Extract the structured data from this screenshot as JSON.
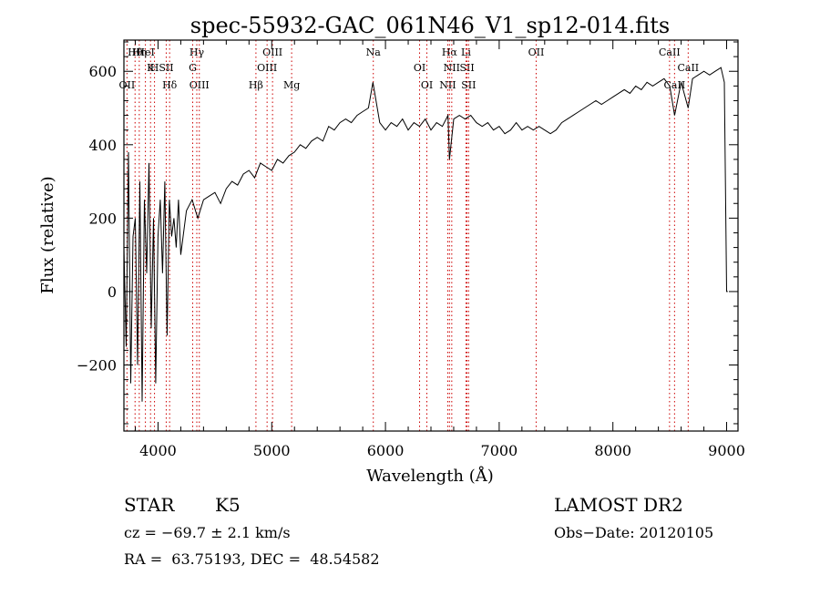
{
  "chart_data": {
    "type": "line",
    "title": "spec-55932-GAC_061N46_V1_sp12-014.fits",
    "xlabel": "Wavelength (Å)",
    "ylabel": "Flux (relative)",
    "xlim": [
      3700,
      9100
    ],
    "ylim": [
      -380,
      685
    ],
    "xticks": [
      4000,
      5000,
      6000,
      7000,
      8000,
      9000
    ],
    "yticks": [
      -200,
      0,
      200,
      400,
      600
    ],
    "grid": false,
    "line_color": "#000000",
    "marker_color": "#cc0000",
    "series": [
      {
        "x": [
          3700,
          3720,
          3740,
          3760,
          3780,
          3800,
          3820,
          3840,
          3860,
          3880,
          3900,
          3920,
          3940,
          3960,
          3980,
          4000,
          4020,
          4040,
          4060,
          4080,
          4100,
          4120,
          4140,
          4160,
          4180,
          4200,
          4250,
          4300,
          4350,
          4400,
          4450,
          4500,
          4550,
          4600,
          4650,
          4700,
          4750,
          4800,
          4850,
          4900,
          4950,
          5000,
          5050,
          5100,
          5150,
          5200,
          5250,
          5300,
          5350,
          5400,
          5450,
          5500,
          5550,
          5600,
          5650,
          5700,
          5750,
          5800,
          5850,
          5890,
          5950,
          6000,
          6050,
          6100,
          6150,
          6200,
          6250,
          6300,
          6350,
          6400,
          6450,
          6500,
          6550,
          6563,
          6600,
          6650,
          6700,
          6750,
          6800,
          6850,
          6900,
          6950,
          7000,
          7050,
          7100,
          7150,
          7200,
          7250,
          7300,
          7350,
          7400,
          7450,
          7500,
          7550,
          7600,
          7650,
          7700,
          7750,
          7800,
          7850,
          7900,
          7950,
          8000,
          8050,
          8100,
          8150,
          8200,
          8250,
          8300,
          8350,
          8400,
          8450,
          8500,
          8542,
          8600,
          8662,
          8700,
          8750,
          8800,
          8850,
          8900,
          8950,
          8980,
          9000,
          9010
        ],
        "values": [
          120,
          -150,
          380,
          -250,
          150,
          200,
          -200,
          300,
          -300,
          250,
          50,
          350,
          -100,
          200,
          -250,
          150,
          250,
          50,
          300,
          -120,
          250,
          150,
          200,
          120,
          250,
          100,
          220,
          250,
          200,
          250,
          260,
          270,
          240,
          280,
          300,
          290,
          320,
          330,
          310,
          350,
          340,
          330,
          360,
          350,
          370,
          380,
          400,
          390,
          410,
          420,
          410,
          450,
          440,
          460,
          470,
          460,
          480,
          490,
          500,
          570,
          460,
          440,
          460,
          450,
          470,
          440,
          460,
          450,
          470,
          440,
          460,
          450,
          480,
          360,
          470,
          480,
          470,
          480,
          460,
          450,
          460,
          440,
          450,
          430,
          440,
          460,
          440,
          450,
          440,
          450,
          440,
          430,
          440,
          460,
          470,
          480,
          490,
          500,
          510,
          520,
          510,
          520,
          530,
          540,
          550,
          540,
          560,
          550,
          570,
          560,
          570,
          580,
          560,
          480,
          570,
          500,
          580,
          590,
          600,
          590,
          600,
          610,
          570,
          0,
          0
        ]
      }
    ],
    "line_markers": [
      {
        "label": "Hθ",
        "x": 3798
      },
      {
        "label": "K",
        "x": 3934
      },
      {
        "label": "Hδ",
        "x": 4102
      },
      {
        "label": "HeI",
        "x": 3889
      },
      {
        "label": "SII",
        "x": 4072
      },
      {
        "label": "OII",
        "x": 3727
      },
      {
        "label": "Hη",
        "x": 3835
      },
      {
        "label": "H",
        "x": 3969
      },
      {
        "label": "OIII",
        "x": 4363
      },
      {
        "label": "Hγ",
        "x": 4341
      },
      {
        "label": "G",
        "x": 4305
      },
      {
        "label": "Hβ",
        "x": 4861
      },
      {
        "label": "OIII",
        "x": 5007
      },
      {
        "label": "OIII",
        "x": 4959
      },
      {
        "label": "Mg",
        "x": 5175
      },
      {
        "label": "Na",
        "x": 5893
      },
      {
        "label": "OI",
        "x": 6300
      },
      {
        "label": "OI",
        "x": 6364
      },
      {
        "label": "Hα",
        "x": 6563
      },
      {
        "label": "SII",
        "x": 6717
      },
      {
        "label": "NII",
        "x": 6548
      },
      {
        "label": "Li",
        "x": 6708
      },
      {
        "label": "NII",
        "x": 6583
      },
      {
        "label": "SII",
        "x": 6731
      },
      {
        "label": "OII",
        "x": 7325
      },
      {
        "label": "CaII",
        "x": 8662
      },
      {
        "label": "CaII",
        "x": 8542
      },
      {
        "label": "CaII",
        "x": 8498
      }
    ]
  },
  "info": {
    "class_label": "STAR",
    "subclass": "K5",
    "survey": "LAMOST DR2",
    "redshift": "cz = −69.7 ± 2.1 km/s",
    "obs_date": "Obs−Date: 20120105",
    "coords": "RA =  63.75193, DEC =  48.54582"
  }
}
